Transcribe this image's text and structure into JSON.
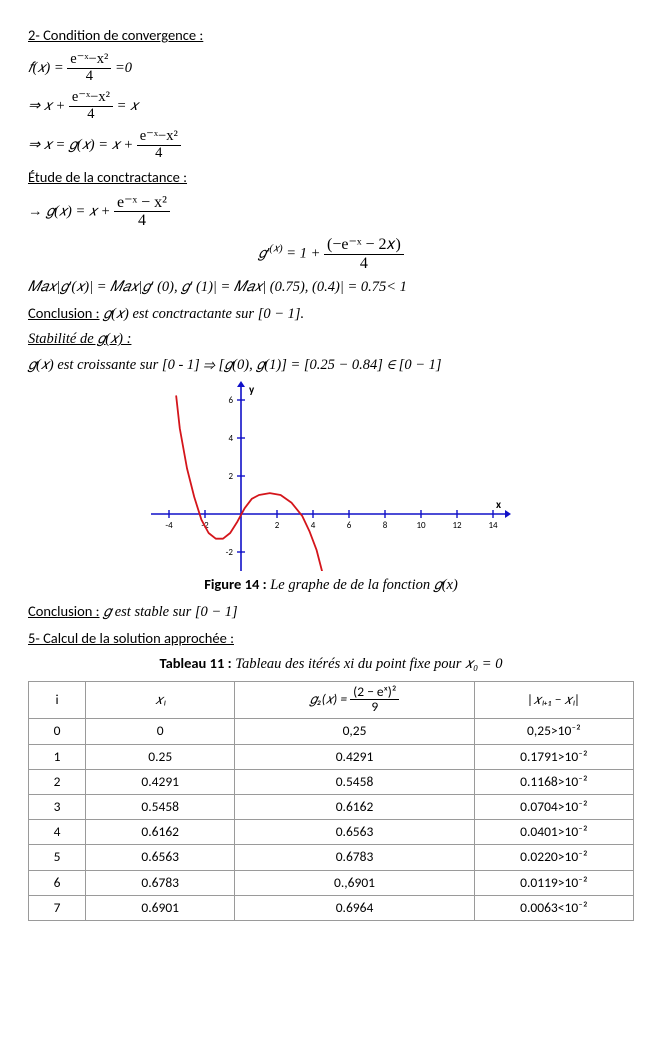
{
  "headings": {
    "h1": "2- Condition de convergence :",
    "etude": "Étude de la conctractance :",
    "concl1_label": "Conclusion :",
    "concl1_text": " 𝑔(𝑥) est conctractante sur [0 − 1].",
    "stab_label": "Stabilité de 𝑔(𝑥) :",
    "stab_text": "𝑔(𝑥) est croissante sur [0 - 1] ⇒ [𝑔(0), 𝑔(1)] = [0.25 − 0.84] ∈  [0 − 1]",
    "concl2_label": "Conclusion :",
    "concl2_text": " 𝑔   est stable sur [0 − 1]",
    "h5": "5-  Calcul de la solution approchée :"
  },
  "equations": {
    "eq1_lhs": "𝑓(𝑥) = ",
    "eq1_num": "e⁻ˣ−x²",
    "eq1_den": "4",
    "eq1_rhs": " =0",
    "eq2_pre": "⇒  𝑥 + ",
    "eq2_num": "e⁻ˣ−x²",
    "eq2_den": "4",
    "eq2_post": " = 𝑥",
    "eq3_pre": "⇒  𝑥 = 𝑔(𝑥) = 𝑥 + ",
    "eq3_num": "e⁻ˣ−x²",
    "eq3_den": "4",
    "eq4_pre": "→   𝑔(𝑥) =  𝑥 + ",
    "eq4_num": "e⁻ˣ − x²",
    "eq4_den": "4",
    "eq5_pre": "𝑔′",
    "eq5_sup": "(𝑥)",
    "eq5_mid": " = 1 + ",
    "eq5_num": "(−e⁻ˣ − 2𝑥)",
    "eq5_den": "4",
    "max_line": "𝑀𝑎𝑥|𝑔′(𝑥)| = 𝑀𝑎𝑥|𝑔′ (0), 𝑔′ (1)| = 𝑀𝑎𝑥| (0.75), (0.4)| = 0.75< 1"
  },
  "figure": {
    "caption_bold": "Figure 14 :",
    "caption_rest": " Le graphe de de la fonction 𝑔(x)",
    "axis_labels": {
      "x": "x",
      "y": "y"
    },
    "x_ticks": [
      -4,
      -2,
      2,
      4,
      6,
      8,
      10,
      12,
      14
    ],
    "y_ticks": [
      -2,
      2,
      4,
      6
    ],
    "colors": {
      "axis": "#1010c8",
      "curve": "#d4151b",
      "tick": "#1010c8",
      "text": "#000000",
      "bg": "#ffffff"
    },
    "curve_points": [
      [
        -3.6,
        6.2
      ],
      [
        -3.4,
        4.5
      ],
      [
        -3.0,
        2.4
      ],
      [
        -2.6,
        0.9
      ],
      [
        -2.2,
        -0.3
      ],
      [
        -1.8,
        -1.0
      ],
      [
        -1.4,
        -1.3
      ],
      [
        -1.0,
        -1.3
      ],
      [
        -0.6,
        -1.0
      ],
      [
        -0.2,
        -0.4
      ],
      [
        0.2,
        0.3
      ],
      [
        0.6,
        0.8
      ],
      [
        1.0,
        1.0
      ],
      [
        1.6,
        1.1
      ],
      [
        2.2,
        1.0
      ],
      [
        2.8,
        0.6
      ],
      [
        3.4,
        -0.1
      ],
      [
        3.8,
        -0.9
      ],
      [
        4.2,
        -1.9
      ],
      [
        4.5,
        -3.0
      ]
    ],
    "xlim": [
      -5,
      15
    ],
    "ylim": [
      -3,
      7
    ],
    "line_width": 1.8
  },
  "table": {
    "caption_bold": "Tableau 11 :",
    "caption_rest": " Tableau  des itérés xi du point fixe pour 𝑥₀ = 0",
    "headers": {
      "i": "i",
      "xi": "𝑥ᵢ",
      "g_pre": "𝑔₂(𝑥) = ",
      "g_num": "(2 − eˣ)²",
      "g_den": "9",
      "diff": "|𝑥ᵢ₊₁ − 𝑥ᵢ|"
    },
    "rows": [
      {
        "i": "0",
        "xi": "0",
        "g": "0,25",
        "d": "0,25>10⁻²"
      },
      {
        "i": "1",
        "xi": "0.25",
        "g": "0.4291",
        "d": "0.1791>10⁻²"
      },
      {
        "i": "2",
        "xi": "0.4291",
        "g": "0.5458",
        "d": "0.1168>10⁻²"
      },
      {
        "i": "3",
        "xi": "0.5458",
        "g": "0.6162",
        "d": "0.0704>10⁻²"
      },
      {
        "i": "4",
        "xi": "0.6162",
        "g": "0.6563",
        "d": "0.0401>10⁻²"
      },
      {
        "i": "5",
        "xi": "0.6563",
        "g": "0.6783",
        "d": "0.0220>10⁻²"
      },
      {
        "i": "6",
        "xi": "0.6783",
        "g": "0.,6901",
        "d": "0.0119>10⁻²"
      },
      {
        "i": "7",
        "xi": "0.6901",
        "g": "0.6964",
        "d": "0.0063<10⁻²"
      }
    ]
  }
}
